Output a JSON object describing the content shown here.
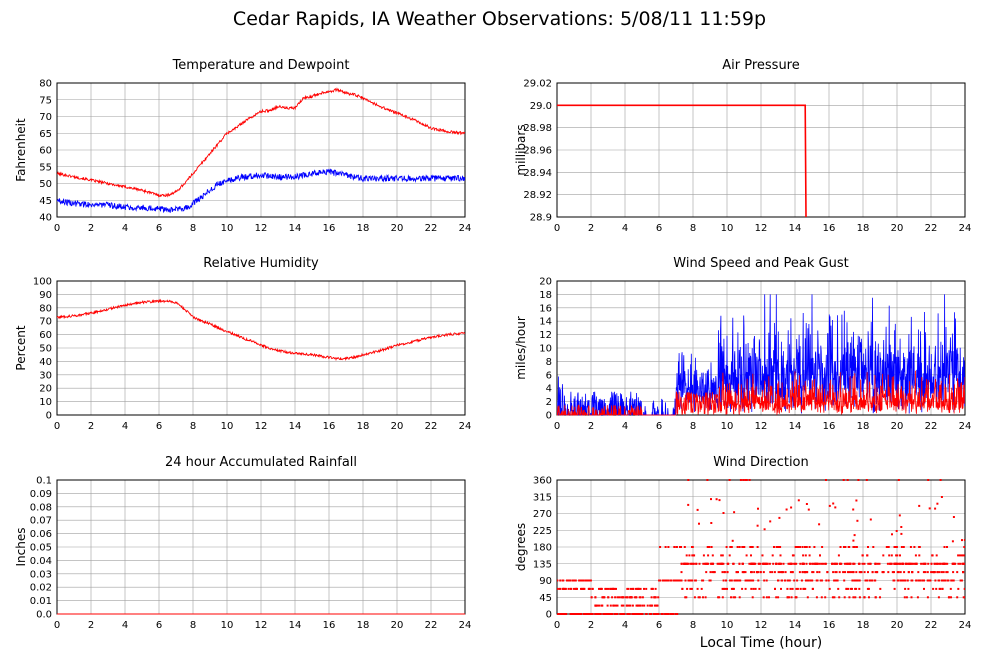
{
  "title": "Cedar Rapids, IA Weather Observations: 5/08/11 11:59p",
  "x_axis_label": "Local Time (hour)",
  "x_ticks": [
    "0",
    "2",
    "4",
    "6",
    "8",
    "10",
    "12",
    "14",
    "16",
    "18",
    "20",
    "22",
    "24"
  ],
  "colors": {
    "primary": "#ff0000",
    "secondary": "#0000ff",
    "grid": "#a0a0a0"
  },
  "chart_data": [
    {
      "id": "temp",
      "type": "line",
      "title": "Temperature and Dewpoint",
      "ylabel": "Fahrenheit",
      "xlim": [
        0,
        24
      ],
      "ylim": [
        40,
        80
      ],
      "yticks": [
        "40",
        "45",
        "50",
        "55",
        "60",
        "65",
        "70",
        "75",
        "80"
      ],
      "grid": true,
      "series": [
        {
          "color": "#ff0000",
          "noise": 0.4,
          "x": [
            0,
            1,
            2,
            3,
            4,
            5,
            6,
            6.5,
            7,
            7.5,
            8,
            8.5,
            9,
            9.5,
            10,
            10.5,
            11,
            11.5,
            12,
            12.5,
            13,
            13.5,
            14,
            14.5,
            15,
            15.5,
            16,
            16.5,
            17,
            17.5,
            18,
            19,
            20,
            21,
            22,
            23,
            24
          ],
          "y": [
            53,
            52,
            51,
            50,
            49,
            48,
            46.5,
            46.5,
            47.5,
            50,
            53,
            56,
            59,
            62,
            65,
            66.5,
            68.5,
            70,
            71.5,
            71.8,
            73,
            72.5,
            72.5,
            75.5,
            76,
            77,
            77.5,
            78,
            77,
            76.5,
            75.5,
            73,
            71,
            69,
            66.5,
            65.5,
            65
          ]
        },
        {
          "color": "#0000ff",
          "noise": 0.9,
          "x": [
            0,
            1,
            2,
            3,
            4,
            5,
            6,
            7,
            7.5,
            8,
            8.5,
            9,
            9.5,
            10,
            10.5,
            11,
            12,
            13,
            14,
            15,
            16,
            17,
            18,
            19,
            20,
            21,
            22,
            23,
            24
          ],
          "y": [
            45,
            44,
            43.8,
            43.5,
            43,
            42.8,
            42.5,
            42.2,
            42.5,
            44,
            46,
            48,
            50,
            51,
            51.5,
            52,
            52.5,
            52,
            52,
            53,
            53.5,
            52.5,
            51.5,
            51.5,
            51.5,
            51.5,
            51.5,
            51.5,
            51.5
          ]
        }
      ]
    },
    {
      "id": "pressure",
      "type": "line",
      "title": "Air Pressure",
      "ylabel": "millibars",
      "xlim": [
        0,
        24
      ],
      "ylim": [
        28.9,
        29.02
      ],
      "yticks": [
        "28.9",
        "28.92",
        "28.94",
        "28.96",
        "28.98",
        "29.0",
        "29.02"
      ],
      "grid": true,
      "series": [
        {
          "color": "#ff0000",
          "noise": 0,
          "x": [
            0,
            14.5,
            14.6,
            14.65
          ],
          "y": [
            29.0,
            29.0,
            29.0,
            28.9
          ]
        }
      ]
    },
    {
      "id": "humidity",
      "type": "line",
      "title": "Relative Humidity",
      "ylabel": "Percent",
      "xlim": [
        0,
        24
      ],
      "ylim": [
        0,
        100
      ],
      "yticks": [
        "0",
        "10",
        "20",
        "30",
        "40",
        "50",
        "60",
        "70",
        "80",
        "90",
        "100"
      ],
      "grid": true,
      "series": [
        {
          "color": "#ff0000",
          "noise": 0.9,
          "x": [
            0,
            1,
            2,
            3,
            4,
            5,
            6,
            6.5,
            7,
            7.5,
            8,
            8.5,
            9,
            9.5,
            10,
            10.5,
            11,
            11.5,
            12,
            12.5,
            13,
            13.5,
            14,
            15,
            16,
            16.5,
            17,
            17.5,
            18,
            19,
            20,
            21,
            22,
            23,
            24
          ],
          "y": [
            73,
            74,
            76,
            79,
            82,
            84,
            85,
            85,
            84,
            79,
            73,
            70,
            68,
            65,
            62,
            60,
            57,
            55,
            52,
            50,
            48,
            47,
            46,
            45,
            43,
            42,
            42,
            43,
            45,
            48,
            52,
            55,
            58,
            60,
            61
          ]
        }
      ]
    },
    {
      "id": "wind",
      "type": "line",
      "title": "Wind Speed and Peak Gust",
      "ylabel": "miles/hour",
      "xlim": [
        0,
        24
      ],
      "ylim": [
        0,
        20
      ],
      "yticks": [
        "0",
        "2",
        "4",
        "6",
        "8",
        "10",
        "12",
        "14",
        "16",
        "18",
        "20"
      ],
      "grid": true,
      "series": [
        {
          "color": "#0000ff",
          "mode": "gust",
          "seed": 11
        },
        {
          "color": "#ff0000",
          "mode": "speed",
          "seed": 29
        }
      ]
    },
    {
      "id": "rain",
      "type": "line",
      "title": "24 hour Accumulated Rainfall",
      "ylabel": "Inches",
      "xlim": [
        0,
        24
      ],
      "ylim": [
        0,
        0.1
      ],
      "yticks": [
        "0.0",
        "0.01",
        "0.02",
        "0.03",
        "0.04",
        "0.05",
        "0.06",
        "0.07",
        "0.08",
        "0.09",
        "0.1"
      ],
      "grid": true,
      "series": [
        {
          "color": "#ff0000",
          "noise": 0,
          "x": [
            0,
            24
          ],
          "y": [
            0,
            0
          ]
        }
      ]
    },
    {
      "id": "direction",
      "type": "scatter",
      "title": "Wind Direction",
      "ylabel": "degrees",
      "xlim": [
        0,
        24
      ],
      "ylim": [
        0,
        360
      ],
      "yticks": [
        "0",
        "45",
        "90",
        "135",
        "180",
        "225",
        "270",
        "315",
        "360"
      ],
      "grid": true,
      "series": [
        {
          "color": "#ff0000",
          "mode": "direction",
          "seed": 7
        }
      ]
    }
  ]
}
